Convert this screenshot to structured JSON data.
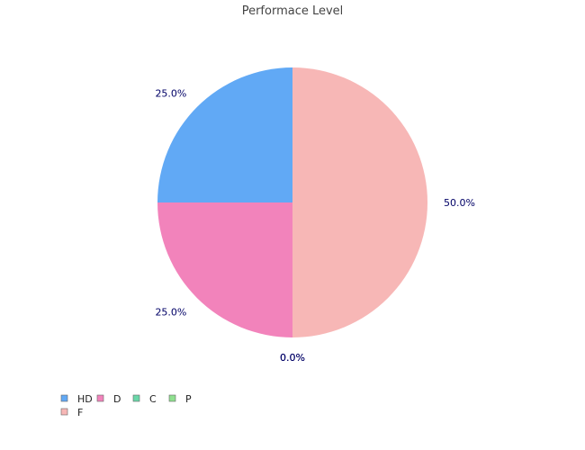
{
  "chart_data": {
    "type": "pie",
    "title": "Performace Level",
    "categories": [
      "HD",
      "D",
      "C",
      "P",
      "F"
    ],
    "values": [
      25.0,
      25.0,
      0.0,
      0.0,
      50.0
    ],
    "colors": [
      "#61a9f5",
      "#f283bb",
      "#6ad7a9",
      "#8fe08f",
      "#f7b7b6"
    ],
    "value_labels": [
      "25.0%",
      "25.0%",
      "0.0%",
      "0.0%",
      "50.0%"
    ],
    "legend_position": "bottom-left"
  }
}
